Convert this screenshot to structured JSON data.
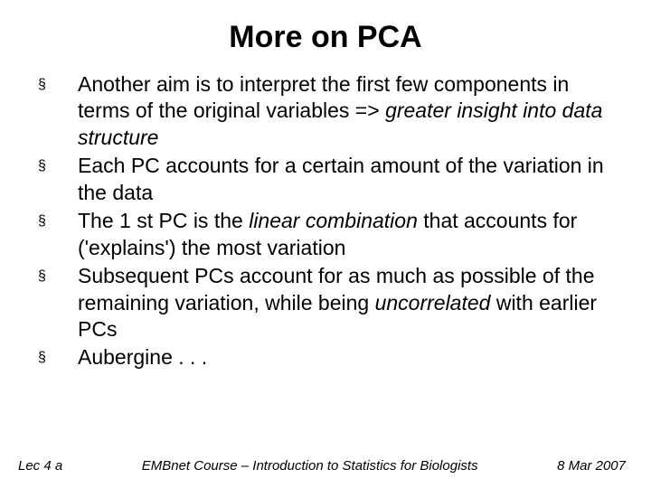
{
  "title": "More on PCA",
  "bullets": [
    {
      "marker": "§",
      "html": "Another aim is to interpret the first few components in terms of the original variables =&gt; <em>greater insight into data structure</em>"
    },
    {
      "marker": "§",
      "html": "Each PC accounts for a certain amount of the variation in the data"
    },
    {
      "marker": "§",
      "html": "The 1 st PC is the <em>linear combination</em> that accounts for ('explains') the most variation"
    },
    {
      "marker": "§",
      "html": "Subsequent PCs account for as much as possible of the remaining variation, while being <em>uncorrelated</em> with earlier PCs"
    },
    {
      "marker": "§",
      "html": "Aubergine . . ."
    }
  ],
  "footer": {
    "left": "Lec 4 a",
    "center": "EMBnet Course – Introduction to Statistics for Biologists",
    "right": "8 Mar 2007"
  }
}
